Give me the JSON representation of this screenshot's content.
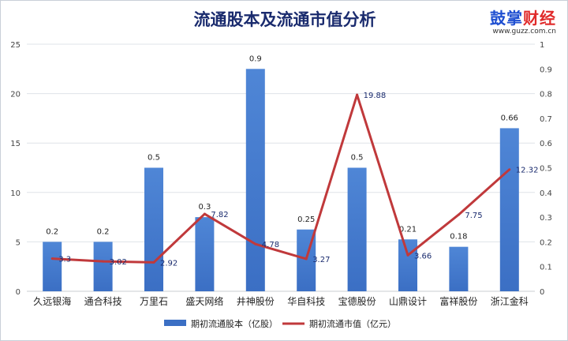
{
  "title": "流通股本及流通市值分析",
  "brand": {
    "part1": "鼓掌",
    "part2": "财经",
    "site": "www.guzz.com.cn"
  },
  "colors": {
    "bar": "#3b6fc4",
    "bar_light": "#4f86d6",
    "line": "#c0393b",
    "grid": "#dfe3e8"
  },
  "chart_data": {
    "type": "bar",
    "categories": [
      "久远银海",
      "通合科技",
      "万里石",
      "盛天网络",
      "井神股份",
      "华自科技",
      "宝德股份",
      "山鼎设计",
      "富祥股份",
      "浙江金科"
    ],
    "series": [
      {
        "name": "期初流通股本（亿股）",
        "type": "bar",
        "axis": "left",
        "values": [
          5,
          5,
          12.5,
          7.5,
          22.5,
          6.25,
          12.5,
          5.25,
          4.5,
          16.5
        ],
        "labels": [
          "0.2",
          "0.2",
          "0.5",
          "0.3",
          "0.9",
          "0.25",
          "0.5",
          "0.21",
          "0.18",
          "0.66"
        ]
      },
      {
        "name": "期初流通市值（亿元）",
        "type": "line",
        "axis": "right",
        "values": [
          0.132,
          0.121,
          0.117,
          0.313,
          0.191,
          0.131,
          0.795,
          0.146,
          0.31,
          0.493
        ],
        "labels": [
          "3.3",
          "3.02",
          "2.92",
          "7.82",
          "4.78",
          "3.27",
          "19.88",
          "3.66",
          "7.75",
          "12.32"
        ]
      }
    ],
    "y_left": {
      "min": 0,
      "max": 25,
      "ticks": [
        "0",
        "5",
        "10",
        "15",
        "20",
        "25"
      ]
    },
    "y_right": {
      "min": 0,
      "max": 1,
      "ticks": [
        "0",
        "0.1",
        "0.2",
        "0.3",
        "0.4",
        "0.5",
        "0.6",
        "0.7",
        "0.8",
        "0.9",
        "1"
      ]
    },
    "grid": true,
    "legend": "bottom"
  }
}
